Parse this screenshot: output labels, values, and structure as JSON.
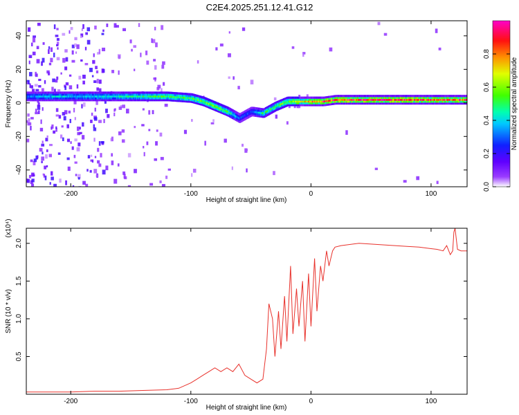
{
  "figure": {
    "title": "C2E4.2025.251.12.41.G12"
  },
  "chart_data": [
    {
      "type": "heatmap",
      "title": "C2E4.2025.251.12.41.G12",
      "xlabel": "Height of straight line (km)",
      "ylabel": "Frequency (Hz)",
      "xlim": [
        -237,
        130
      ],
      "ylim": [
        -50,
        49
      ],
      "xticks": [
        -200,
        -100,
        0,
        100
      ],
      "xticklabels": [
        "-200",
        "-100",
        "0",
        "100"
      ],
      "yticks": [
        -40,
        -20,
        0,
        20,
        40
      ],
      "yticklabels": [
        "-40",
        "-20",
        "0",
        "20",
        "40"
      ],
      "ridge": {
        "x": [
          -235,
          -220,
          -200,
          -180,
          -160,
          -140,
          -120,
          -100,
          -90,
          -80,
          -70,
          -60,
          -50,
          -40,
          -30,
          -20,
          -10,
          0,
          10,
          20,
          40,
          60,
          80,
          100,
          120,
          130
        ],
        "frequency": [
          4,
          4,
          4,
          4,
          4,
          4,
          4,
          3,
          1,
          -2,
          -5,
          -9,
          -5,
          -6,
          -2,
          1,
          1,
          1,
          1,
          2,
          2,
          2,
          2,
          2,
          2,
          2
        ],
        "amplitude": [
          0.35,
          0.4,
          0.4,
          0.42,
          0.45,
          0.5,
          0.55,
          0.55,
          0.6,
          0.6,
          0.55,
          0.3,
          0.3,
          0.5,
          0.55,
          0.6,
          0.7,
          0.85,
          0.9,
          0.95,
          0.95,
          0.95,
          0.95,
          0.9,
          0.9,
          0.9
        ]
      },
      "grid": false,
      "colorbar": {
        "label": "Normalized spectral amplitude",
        "range": [
          0,
          1
        ],
        "ticks": [
          0.0,
          0.2,
          0.4,
          0.6,
          0.8
        ],
        "ticklabels": [
          "0.0",
          "0.2",
          "0.4",
          "0.6",
          "0.8"
        ],
        "colors": [
          "#ffffff",
          "#8000ff",
          "#0000ff",
          "#00ffff",
          "#00ff00",
          "#ffff00",
          "#ff8000",
          "#ff0000",
          "#ff00ff"
        ]
      }
    },
    {
      "type": "line",
      "xlabel": "Height of straight line (km)",
      "ylabel": "SNR (10 * v/v)",
      "scale_label": "(x10⁴)",
      "xlim": [
        -237,
        130
      ],
      "ylim": [
        0,
        2.2
      ],
      "xticks": [
        -200,
        -100,
        0,
        100
      ],
      "xticklabels": [
        "-200",
        "-100",
        "0",
        "100"
      ],
      "yticks": [
        0.5,
        1.0,
        1.5,
        2.0
      ],
      "yticklabels": [
        "0.5",
        "1.0",
        "1.5",
        "2.0"
      ],
      "grid": false,
      "series": [
        {
          "color": "#e8302a",
          "x": [
            -237,
            -220,
            -200,
            -180,
            -160,
            -140,
            -120,
            -110,
            -100,
            -95,
            -90,
            -85,
            -80,
            -75,
            -70,
            -65,
            -60,
            -55,
            -50,
            -45,
            -40,
            -37,
            -35,
            -32,
            -30,
            -27,
            -25,
            -22,
            -20,
            -17,
            -15,
            -12,
            -10,
            -7,
            -5,
            -2,
            0,
            3,
            5,
            8,
            10,
            13,
            15,
            18,
            20,
            25,
            30,
            40,
            50,
            60,
            70,
            80,
            90,
            100,
            105,
            110,
            113,
            116,
            118,
            119,
            120,
            122,
            125,
            130
          ],
          "values": [
            0.03,
            0.03,
            0.03,
            0.04,
            0.04,
            0.05,
            0.06,
            0.08,
            0.15,
            0.2,
            0.25,
            0.3,
            0.35,
            0.3,
            0.35,
            0.3,
            0.4,
            0.25,
            0.2,
            0.15,
            0.2,
            0.6,
            1.2,
            1.0,
            0.5,
            1.1,
            0.6,
            1.3,
            0.7,
            1.7,
            0.8,
            1.4,
            0.9,
            1.5,
            0.7,
            1.6,
            0.9,
            1.8,
            1.1,
            1.7,
            1.5,
            1.9,
            1.7,
            1.9,
            1.95,
            1.97,
            1.98,
            2.0,
            1.99,
            1.98,
            1.97,
            1.96,
            1.95,
            1.93,
            1.92,
            1.9,
            1.97,
            1.85,
            1.9,
            2.15,
            2.2,
            1.92,
            1.9,
            1.9
          ]
        }
      ]
    }
  ]
}
